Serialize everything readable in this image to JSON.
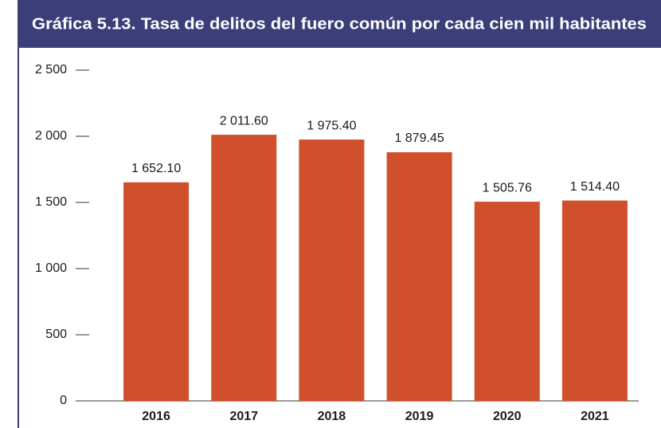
{
  "chart_data": {
    "type": "bar",
    "title": "Gráfica 5.13. Tasa de delitos del fuero común por cada cien mil habitantes",
    "categories": [
      "2016",
      "2017",
      "2018",
      "2019",
      "2020",
      "2021"
    ],
    "values": [
      1652.1,
      2011.6,
      1975.4,
      1879.45,
      1505.76,
      1514.4
    ],
    "value_labels": [
      "1 652.10",
      "2 011.60",
      "1 975.40",
      "1 879.45",
      "1 505.76",
      "1 514.40"
    ],
    "color": "#d0502b",
    "ylim": [
      0,
      2500
    ],
    "yticks": [
      {
        "value": 0,
        "label": "0"
      },
      {
        "value": 500,
        "label": "500"
      },
      {
        "value": 1000,
        "label": "1 000"
      },
      {
        "value": 1500,
        "label": "1 500"
      },
      {
        "value": 2000,
        "label": "2 000"
      },
      {
        "value": 2500,
        "label": "2 500"
      }
    ]
  }
}
